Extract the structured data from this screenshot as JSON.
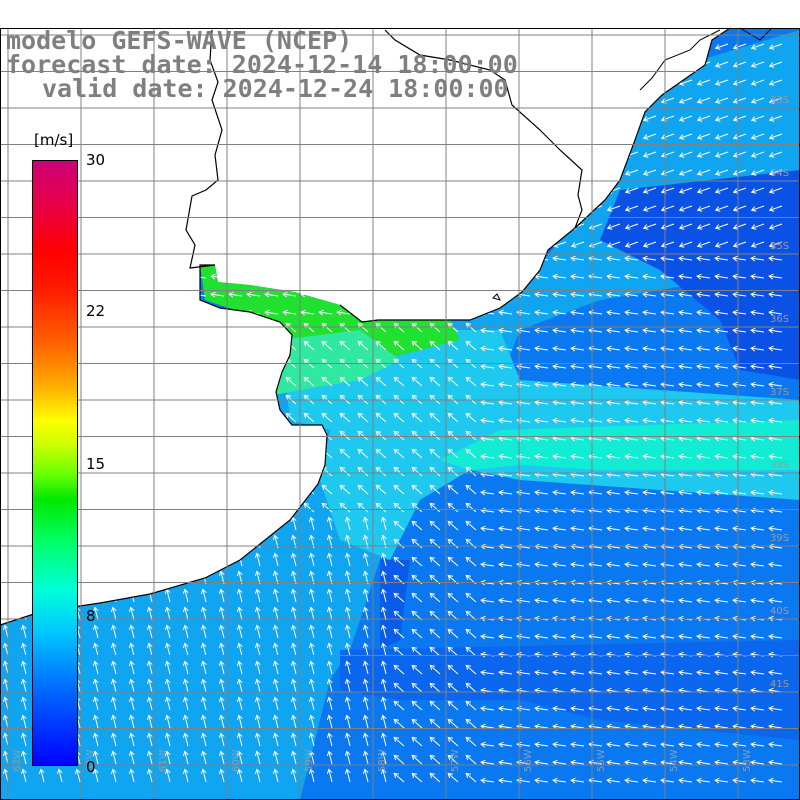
{
  "title_lines": [
    "modelo GEFS-WAVE (NCEP)",
    "forecast date: 2024-12-14 18:00:00",
    "valid date: 2024-12-24 18:00:00"
  ],
  "colorbar": {
    "units": "[m/s]",
    "ticks": [
      "30",
      "22",
      "15",
      "8",
      "0"
    ],
    "min": 0,
    "max": 30
  },
  "map": {
    "lat_labels": [
      "33S",
      "34S",
      "35S",
      "36S",
      "37S",
      "38S",
      "39S",
      "40S",
      "41S"
    ],
    "lon_labels": [
      "63W",
      "62W",
      "61W",
      "60W",
      "59W",
      "58W",
      "57W",
      "56W",
      "55W",
      "54W",
      "53W"
    ],
    "field_colors": {
      "land": "#ffffff",
      "coast_line": "#000000",
      "grid_line": "#808080",
      "arrows": "#ffffff",
      "estuary": "#20e030",
      "coastal": "#1ec8ee",
      "shelf": "#0fa5f0",
      "open_ocean": "#0a78f0",
      "deep": "#0a50e8",
      "jet": "#10f0c8"
    }
  }
}
